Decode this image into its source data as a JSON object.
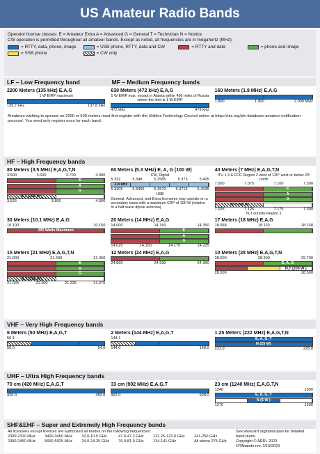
{
  "header": {
    "title": "US Amateur Radio Bands"
  },
  "intro": {
    "lines": [
      "Operator license classes: E = Amateur Extra  A = Advanced  G = General  T = Technician  N = Novice",
      "CW operation is permitted throughout all amateur bands. Except as noted, all frequencies are in megahertz (MHz)."
    ],
    "legend": [
      {
        "fill": "#1f6db3",
        "label": "= RTTY, data, phone, image"
      },
      {
        "fill": "#8fc1e8",
        "label": "= USB phone, RTTY, data and CW"
      },
      {
        "fill": "#b0454a",
        "label": "= RTTY and data"
      },
      {
        "fill": "#5fa84a",
        "label": "= phone and image"
      },
      {
        "fill": "#f3e04f",
        "label": "= SSB phone"
      },
      {
        "fill": "repeating-linear-gradient(45deg,#222 0 1px,#fff 1px 3px)",
        "label": "= CW only"
      }
    ]
  },
  "sections": [
    {
      "titles": [
        "LF – Low Frequency band",
        "MF – Medium Frequency bands"
      ],
      "bands": [
        {
          "title": "2200 Meters (135 kHz) E,A,G",
          "subtitle": "1 W EIRP maximum",
          "rows": [
            [
              {
                "fill": "#1f6db3"
              }
            ]
          ],
          "bottom": [
            "135.7 kHz",
            "137.8 kHz"
          ]
        },
        {
          "title": "630 Meters (472 kHz) E,A,G",
          "subtitle": "5 W EIRP max, except in Alaska within 496 miles of Russia where the limit is 1 W EIRP",
          "rows": [
            [
              {
                "fill": "#1f6db3"
              }
            ]
          ],
          "bottom": [
            "472 kHz",
            "479 kHz"
          ]
        },
        {
          "title": "160 Meters (1.8 MHz) E,A,G",
          "rows": [
            [
              {
                "fill": "#1f6db3"
              },
              {
                "fill": "#1f6db3"
              }
            ]
          ],
          "bottom": [
            "1.800",
            "1.900",
            "2.000 MHz"
          ]
        }
      ],
      "note": "Amateurs wishing to operate on 2200 or 630 meters must first register with the Utilities Technology Council online at https://utc.org/plc-database-amateur-notification-process/. You need only register once for each band."
    },
    {
      "titles": [
        "HF – High Frequency bands"
      ],
      "bands": [
        {
          "title": "80 Meters (3.5 MHz) E,A,G,T,N",
          "top": [
            "3.500",
            "3.600",
            "3.700",
            "4.000"
          ],
          "rows": [
            [
              {
                "fill": "#b0454a"
              },
              {
                "fill": "#5fa84a",
                "label": "E"
              }
            ],
            [
              {
                "fill": "#b0454a"
              },
              {
                "fill": "#5fa84a",
                "label": "A"
              }
            ],
            [
              {
                "fill": "#b0454a"
              },
              {
                "fill": "#5fa84a",
                "label": "G"
              }
            ],
            [
              {
                "fill": "repeating-linear-gradient(45deg,#222 0 1px,#fff 1px 3px)",
                "label": "N,T (200 W )"
              },
              {
                "fill": "#ffffff"
              }
            ]
          ],
          "bottom": [
            "3.525",
            "3.800",
            "4.000"
          ]
        },
        {
          "title": "60 Meters (5.3 MHz) E, A, G (100 W)",
          "above": [
            "CW, Digital"
          ],
          "top": [
            "5.332",
            "5.348",
            "5.3585",
            "5.373",
            "5.405"
          ],
          "rows": [
            [
              {
                "fill": "#8fc1e8",
                "label": "2.8 kHz"
              },
              {
                "fill": "#8fc1e8"
              },
              {
                "fill": "#8fc1e8"
              },
              {
                "fill": "#8fc1e8"
              },
              {
                "fill": "#8fc1e8"
              }
            ]
          ],
          "bottom": [
            "5.3305",
            "5.3465",
            "5.3570",
            "5.3715",
            "5.4035"
          ],
          "below": [
            "USB"
          ],
          "note": "General, Advanced, and Extra licensees may operate on a secondary basis with a maximum ERP of 100 W (relative to a half-wave dipole antenna)."
        },
        {
          "title": "40 Meters (7 MHz) E,A,G,T,N",
          "above": [
            "ITU 1,3 & FCC Region 2 west of 130° west or below 20° north"
          ],
          "top": [
            "7.000",
            "7.075",
            "7.100",
            "7.300"
          ],
          "rows": [
            [
              {
                "fill": "#b0454a"
              },
              {
                "fill": "#5fa84a",
                "label": "E"
              }
            ],
            [
              {
                "fill": "#b0454a"
              },
              {
                "fill": "#5fa84a",
                "label": "A"
              }
            ],
            [
              {
                "fill": "#b0454a"
              },
              {
                "fill": "#5fa84a",
                "label": "G"
              }
            ],
            [
              {
                "fill": "repeating-linear-gradient(45deg,#222 0 1px,#fff 1px 3px)",
                "label": "N,T 200 W"
              },
              {
                "fill": "#ffffff"
              }
            ]
          ],
          "bottom": [
            "7.025",
            "7.125",
            "7.175",
            "7.300"
          ],
          "below": [
            "N,T outside Region 2"
          ]
        },
        {
          "title": "30 Meters (10.1 MHz) E,A,G",
          "top": [
            "10.100",
            "10.150"
          ],
          "rows": [
            [
              {
                "fill": "#b0454a",
                "label": "200 Watts Maximum"
              }
            ]
          ]
        },
        {
          "title": "20 Meters (14 MHz) E,A,G",
          "top": [
            "14.000",
            "14.150",
            "14.350"
          ],
          "rows": [
            [
              {
                "fill": "#b0454a"
              },
              {
                "fill": "#5fa84a",
                "label": "E"
              }
            ],
            [
              {
                "fill": "#b0454a"
              },
              {
                "fill": "#5fa84a",
                "label": "A"
              }
            ],
            [
              {
                "fill": "#b0454a"
              },
              {
                "fill": "#5fa84a",
                "label": "G"
              }
            ]
          ],
          "bottom": [
            "14.025",
            "14.150",
            "14.175",
            "14.225"
          ]
        },
        {
          "title": "17 Meters (18 MHz) E,A,G",
          "top": [
            "18.068",
            "18.110",
            "18.168"
          ],
          "rows": [
            [
              {
                "fill": "#b0454a"
              },
              {
                "fill": "#5fa84a"
              }
            ]
          ]
        },
        {
          "title": "15 Meters (21 MHz) E,A,G,T,N",
          "top": [
            "21.000",
            "21.200",
            "21.450"
          ],
          "rows": [
            [
              {
                "fill": "#b0454a"
              },
              {
                "fill": "#5fa84a",
                "label": "E"
              }
            ],
            [
              {
                "fill": "#b0454a"
              },
              {
                "fill": "#5fa84a",
                "label": "A"
              }
            ],
            [
              {
                "fill": "#b0454a"
              },
              {
                "fill": "#5fa84a",
                "label": "G"
              }
            ],
            [
              {
                "fill": "repeating-linear-gradient(45deg,#222 0 1px,#fff 1px 3px)",
                "label": "N,T (200 W)"
              },
              {
                "fill": "#ffffff"
              }
            ]
          ],
          "bottom": [
            "21.025",
            "21.200",
            "21.225",
            "21.275"
          ]
        },
        {
          "title": "12 Meters (24 MHz) E,A,G",
          "rows": [
            [
              {
                "fill": "#b0454a"
              },
              {
                "fill": "#5fa84a"
              }
            ]
          ],
          "bottom": [
            "24.890",
            "24.930",
            "24.990"
          ]
        },
        {
          "title": "10 Meters (28 MHz) E,A,G,T,N",
          "top": [
            "28.000",
            "28.300",
            "29.700"
          ],
          "rows": [
            [
              {
                "fill": "#b0454a"
              },
              {
                "fill": "#5fa84a",
                "label": "E, A, G"
              }
            ],
            [
              {
                "fill": "#b0454a"
              },
              {
                "fill": "#f3e04f"
              },
              {
                "fill": "#ffffff",
                "label": "N,T (200 W )"
              }
            ]
          ],
          "bottom": [
            "28.000",
            "28.500"
          ]
        }
      ]
    },
    {
      "titles": [
        "VHF – Very High Frequency bands"
      ],
      "bands": [
        {
          "title": "6 Meters (50 MHz) E,A,G,T",
          "top": [
            "50.1"
          ],
          "rows": [
            [
              {
                "fill": "repeating-linear-gradient(45deg,#222 0 1px,#fff 1px 3px)"
              },
              {
                "fill": "#1f6db3"
              },
              {
                "fill": "#1f6db3"
              },
              {
                "fill": "#1f6db3"
              }
            ]
          ],
          "bottom": [
            "50.0",
            "54.0"
          ]
        },
        {
          "title": "2 Meters (144 MHz) E,A,G,T",
          "top": [
            "144.1"
          ],
          "rows": [
            [
              {
                "fill": "repeating-linear-gradient(45deg,#222 0 1px,#fff 1px 3px)"
              },
              {
                "fill": "#1f6db3"
              },
              {
                "fill": "#1f6db3"
              },
              {
                "fill": "#1f6db3"
              }
            ]
          ],
          "bottom": [
            "144.0",
            "148.0"
          ]
        },
        {
          "title": "1.25 Meters (222 MHz) E,A,G,T,N",
          "rows": [
            [
              {
                "fill": "#1f6db3",
                "label": "E, A, G, T"
              }
            ],
            [
              {
                "fill": "#1f6db3",
                "label": "N (25 W)"
              }
            ]
          ],
          "bottom": [
            "222.0",
            "225.0"
          ]
        }
      ]
    },
    {
      "titles": [
        "UHF – Ultra High Frequency bands"
      ],
      "bands": [
        {
          "title": "70 cm (420 MHz) E,A,G,T",
          "rows": [
            [
              {
                "fill": "#1f6db3"
              }
            ]
          ],
          "bottom": [
            "420.0",
            "450.0"
          ]
        },
        {
          "title": "33 cm (902 MHz) E,A,G,T",
          "rows": [
            [
              {
                "fill": "#1f6db3"
              }
            ]
          ],
          "bottom": [
            "902.0",
            "928.0"
          ]
        },
        {
          "title": "23 cm (1240 MHz) E,A,G,T,N",
          "top": [
            "1240",
            "1300"
          ],
          "rows": [
            [
              {
                "fill": "#1f6db3",
                "label": "E, A, G, T"
              }
            ],
            [
              {
                "fill": "#ffffff"
              },
              {
                "fill": "#1f6db3",
                "label": "N (5 W )"
              },
              {
                "fill": "#ffffff"
              }
            ]
          ],
          "bottom": [
            "1270",
            "1295"
          ]
        }
      ]
    }
  ],
  "shf": {
    "title": "SHF&EHF – Super and Extremely High Frequency bands",
    "note": "All licensees except Novices are authorized all modes on the following frequencies:",
    "freqs": [
      "2300-2310 MHz",
      "3400-3450 MHz",
      "10.0-10.5 GHz",
      "47.0-47.2 GHz",
      "122.25-123.0 GHz",
      "241-250 GHz",
      "2390-2450 MHz",
      "5650-5925 MHz",
      "24.0-24.25 GHz",
      "76.0-81.0 GHz",
      "134-141 GHz",
      "All above 275 GHz"
    ],
    "side": [
      "See www.arrl.org/band-plan for detailed band plans.",
      "Copyright © ARRL 2023",
      "OTAbands rev. 2/10/2023"
    ]
  }
}
